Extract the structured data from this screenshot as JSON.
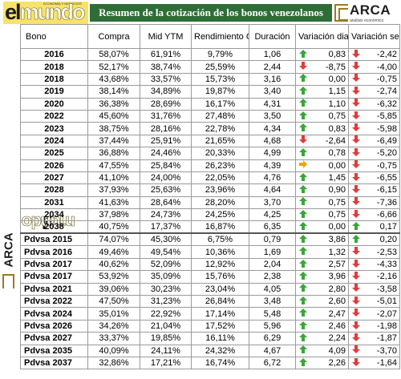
{
  "brand": {
    "logo_word_el": "el",
    "logo_word_mundo": "mundo",
    "logo_tiny": "ECONOMÍA Y NEGOCIOS",
    "arca_name": "ARCA",
    "arca_sub": "análisis económico"
  },
  "title": "Resumen de la cotización de los bonos venezolanos",
  "headers": {
    "bono": "Bono",
    "compra": "Compra",
    "mid": "Mid YTM",
    "rend": "Rendimiento Corriente",
    "dur": "Duración",
    "vd": "Variación diaria",
    "vs": "Variación semanal"
  },
  "colors": {
    "up": "#3aa63a",
    "down": "#e23b3b",
    "flat": "#f0a400",
    "title_bg": "#2e6e36",
    "logo_yellow": "#f7e26a"
  },
  "rows": [
    {
      "bono": "2016",
      "compra": "58,07%",
      "mid": "61,91%",
      "rend": "9,79%",
      "dur": "1,06",
      "vd": "0,83",
      "vd_dir": "up",
      "vs": "-2,42",
      "vs_dir": "down"
    },
    {
      "bono": "2018",
      "compra": "52,17%",
      "mid": "38,74%",
      "rend": "25,59%",
      "dur": "2,44",
      "vd": "-8,75",
      "vd_dir": "down",
      "vs": "-4,00",
      "vs_dir": "down"
    },
    {
      "bono": "2018",
      "compra": "43,68%",
      "mid": "33,57%",
      "rend": "15,73%",
      "dur": "3,16",
      "vd": "0,00",
      "vd_dir": "up",
      "vs": "-0,75",
      "vs_dir": "down"
    },
    {
      "bono": "2019",
      "compra": "38,14%",
      "mid": "34,89%",
      "rend": "19,87%",
      "dur": "3,40",
      "vd": "1,15",
      "vd_dir": "up",
      "vs": "-2,74",
      "vs_dir": "down"
    },
    {
      "bono": "2020",
      "compra": "36,38%",
      "mid": "28,69%",
      "rend": "16,17%",
      "dur": "4,31",
      "vd": "1,10",
      "vd_dir": "up",
      "vs": "-6,32",
      "vs_dir": "down"
    },
    {
      "bono": "2022",
      "compra": "45,60%",
      "mid": "31,76%",
      "rend": "27,48%",
      "dur": "3,50",
      "vd": "0,75",
      "vd_dir": "up",
      "vs": "-5,85",
      "vs_dir": "down"
    },
    {
      "bono": "2023",
      "compra": "38,75%",
      "mid": "28,16%",
      "rend": "22,78%",
      "dur": "4,34",
      "vd": "0,83",
      "vd_dir": "up",
      "vs": "-5,98",
      "vs_dir": "down"
    },
    {
      "bono": "2024",
      "compra": "37,44%",
      "mid": "25,91%",
      "rend": "21,65%",
      "dur": "4,68",
      "vd": "-2,64",
      "vd_dir": "down",
      "vs": "-6,49",
      "vs_dir": "down"
    },
    {
      "bono": "2025",
      "compra": "36,88%",
      "mid": "24,46%",
      "rend": "20,33%",
      "dur": "4,99",
      "vd": "0,78",
      "vd_dir": "up",
      "vs": "-5,20",
      "vs_dir": "down"
    },
    {
      "bono": "2026",
      "compra": "47,55%",
      "mid": "25,84%",
      "rend": "26,23%",
      "dur": "4,39",
      "vd": "0,00",
      "vd_dir": "flat",
      "vs": "-0,75",
      "vs_dir": "down"
    },
    {
      "bono": "2027",
      "compra": "41,10%",
      "mid": "24,00%",
      "rend": "22,05%",
      "dur": "4,76",
      "vd": "1,45",
      "vd_dir": "up",
      "vs": "-6,55",
      "vs_dir": "down"
    },
    {
      "bono": "2028",
      "compra": "37,93%",
      "mid": "25,63%",
      "rend": "23,96%",
      "dur": "4,64",
      "vd": "0,90",
      "vd_dir": "up",
      "vs": "-6,15",
      "vs_dir": "down"
    },
    {
      "bono": "2031",
      "compra": "41,63%",
      "mid": "28,64%",
      "rend": "28,20%",
      "dur": "3,70",
      "vd": "0,75",
      "vd_dir": "up",
      "vs": "-7,36",
      "vs_dir": "down"
    },
    {
      "bono": "2034",
      "compra": "37,98%",
      "mid": "24,73%",
      "rend": "24,25%",
      "dur": "4,25",
      "vd": "0,75",
      "vd_dir": "up",
      "vs": "-6,66",
      "vs_dir": "down"
    },
    {
      "bono": "2038",
      "compra": "40,75%",
      "mid": "17,37%",
      "rend": "16,87%",
      "dur": "6,35",
      "vd": "0,00",
      "vd_dir": "up",
      "vs": "0,17",
      "vs_dir": "up"
    },
    {
      "bono": "Pdvsa 2015",
      "compra": "74,07%",
      "mid": "45,30%",
      "rend": "6,75%",
      "dur": "0,79",
      "vd": "3,86",
      "vd_dir": "up",
      "vs": "0,20",
      "vs_dir": "up"
    },
    {
      "bono": "Pdvsa 2016",
      "compra": "49,46%",
      "mid": "49,54%",
      "rend": "10,36%",
      "dur": "1,69",
      "vd": "1,32",
      "vd_dir": "up",
      "vs": "-2,53",
      "vs_dir": "down"
    },
    {
      "bono": "Pdvsa 2017",
      "compra": "40,62%",
      "mid": "52,09%",
      "rend": "12,92%",
      "dur": "2,04",
      "vd": "2,57",
      "vd_dir": "up",
      "vs": "-4,33",
      "vs_dir": "down"
    },
    {
      "bono": "Pdvsa 2017",
      "compra": "53,92%",
      "mid": "35,09%",
      "rend": "15,76%",
      "dur": "2,38",
      "vd": "3,96",
      "vd_dir": "up",
      "vs": "-2,16",
      "vs_dir": "down"
    },
    {
      "bono": "Pdvsa 2021",
      "compra": "39,06%",
      "mid": "30,23%",
      "rend": "23,04%",
      "dur": "4,05",
      "vd": "2,80",
      "vd_dir": "up",
      "vs": "-3,58",
      "vs_dir": "down"
    },
    {
      "bono": "Pdvsa 2022",
      "compra": "47,50%",
      "mid": "31,23%",
      "rend": "26,84%",
      "dur": "3,48",
      "vd": "2,60",
      "vd_dir": "up",
      "vs": "-5,01",
      "vs_dir": "down"
    },
    {
      "bono": "Pdvsa 2024",
      "compra": "35,01%",
      "mid": "22,92%",
      "rend": "17,14%",
      "dur": "5,48",
      "vd": "2,47",
      "vd_dir": "up",
      "vs": "-2,07",
      "vs_dir": "down"
    },
    {
      "bono": "Pdvsa 2026",
      "compra": "34,26%",
      "mid": "21,04%",
      "rend": "17,52%",
      "dur": "5,96",
      "vd": "2,46",
      "vd_dir": "up",
      "vs": "-1,98",
      "vs_dir": "down"
    },
    {
      "bono": "Pdvsa 2027",
      "compra": "33,37%",
      "mid": "19,85%",
      "rend": "16,11%",
      "dur": "6,29",
      "vd": "2,24",
      "vd_dir": "up",
      "vs": "-1,87",
      "vs_dir": "down"
    },
    {
      "bono": "Pdvsa 2035",
      "compra": "40,09%",
      "mid": "24,11%",
      "rend": "24,32%",
      "dur": "4,67",
      "vd": "4,09",
      "vd_dir": "up",
      "vs": "-3,70",
      "vs_dir": "down"
    },
    {
      "bono": "Pdvsa 2037",
      "compra": "32,86%",
      "mid": "17,21%",
      "rend": "16,74%",
      "dur": "6,72",
      "vd": "2,26",
      "vd_dir": "up",
      "vs": "-1,64",
      "vs_dir": "down"
    }
  ]
}
